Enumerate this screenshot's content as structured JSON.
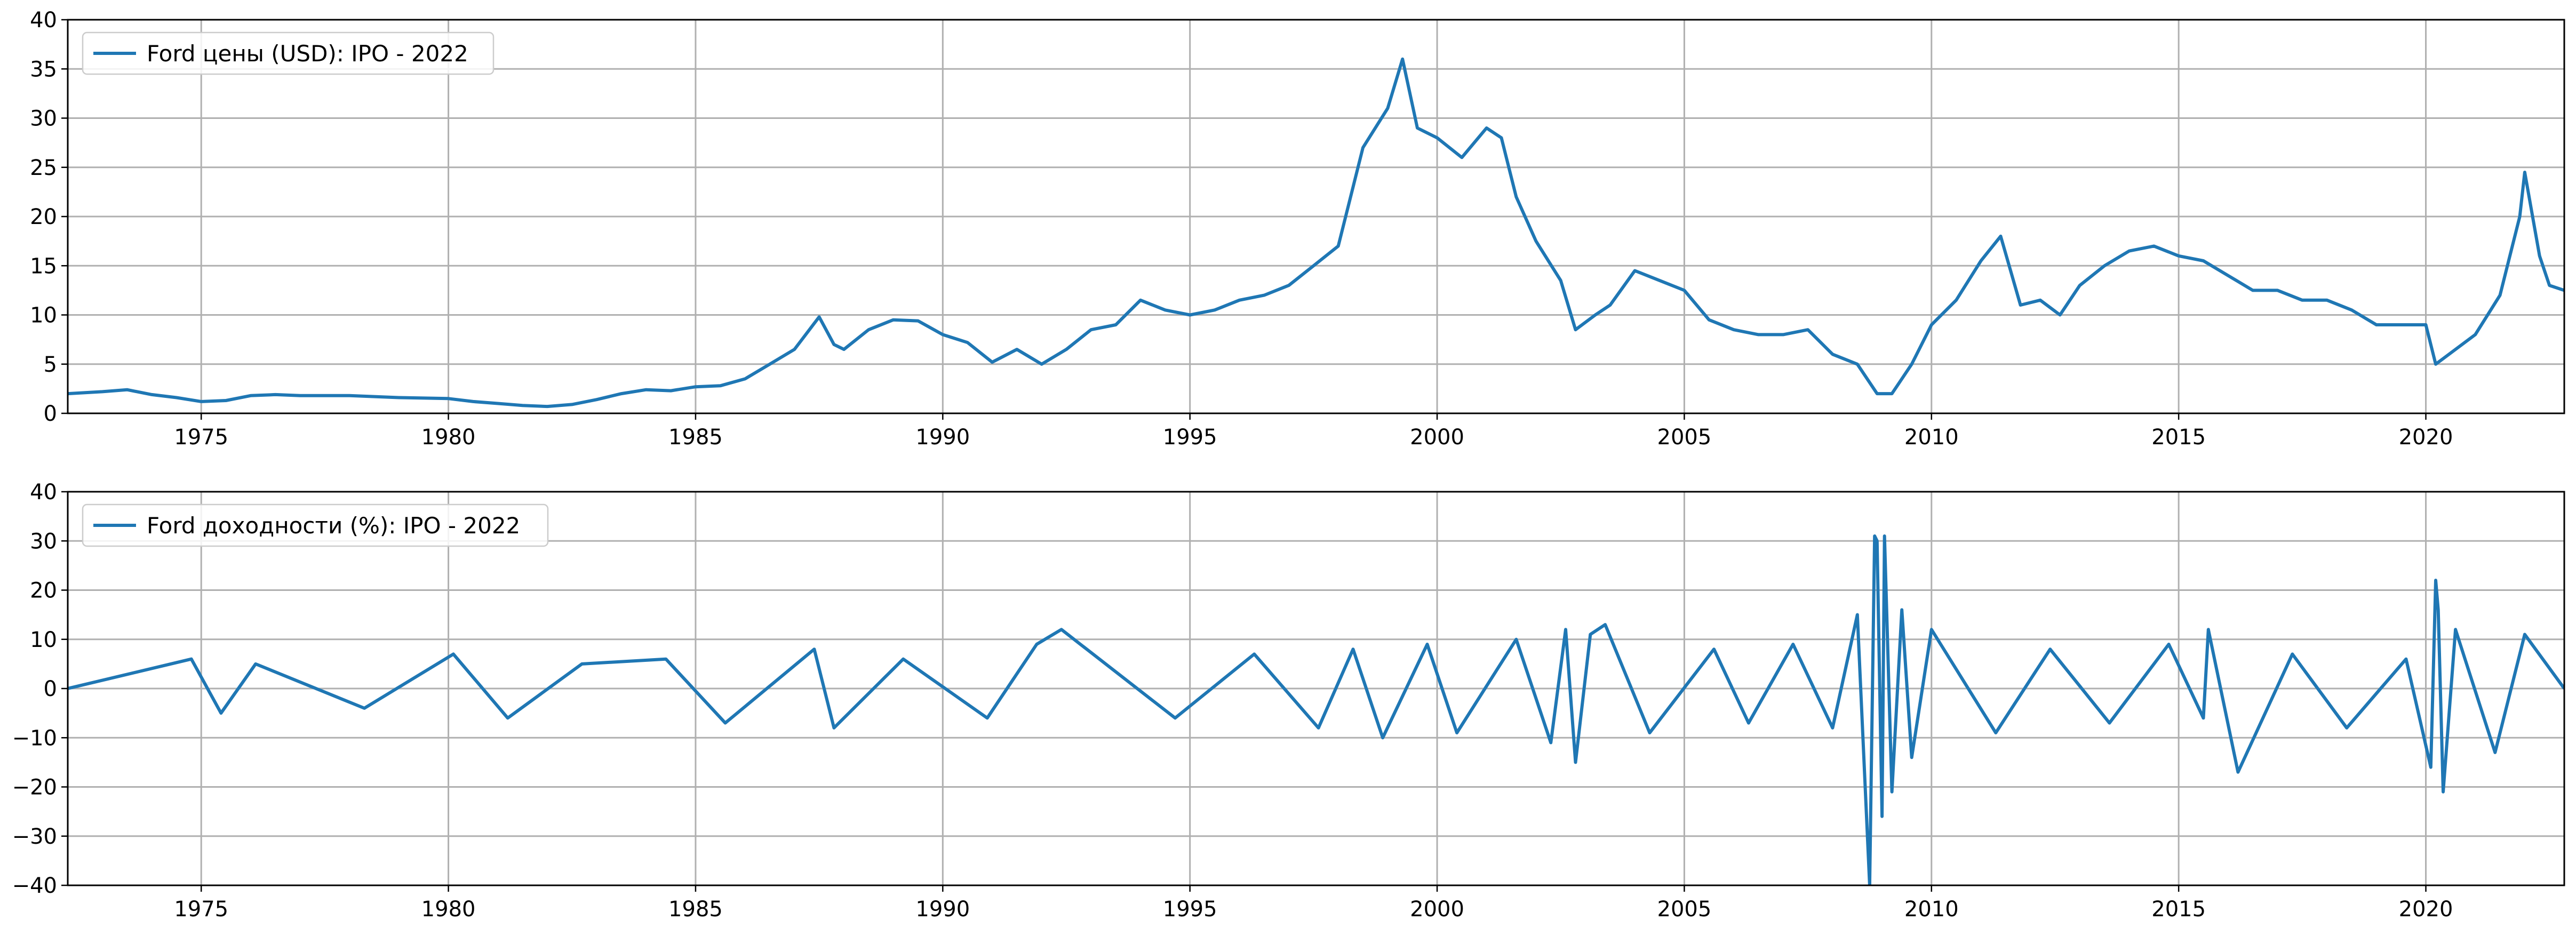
{
  "figure": {
    "line_color": "#1f77b4",
    "grid_color": "#b0b0b0"
  },
  "chart_data": [
    {
      "type": "line",
      "title": "",
      "xlabel": "",
      "ylabel": "",
      "xlim": [
        1972.3,
        2022.8
      ],
      "ylim": [
        0,
        40
      ],
      "xticks": [
        "1975",
        "1980",
        "1985",
        "1990",
        "1995",
        "2000",
        "2005",
        "2010",
        "2015",
        "2020"
      ],
      "yticks": [
        "0",
        "5",
        "10",
        "15",
        "20",
        "25",
        "30",
        "35",
        "40"
      ],
      "grid": true,
      "legend_position": "upper-left",
      "series": [
        {
          "name": "Ford цены (USD): IPO - 2022",
          "x": [
            1972.3,
            1973.0,
            1973.5,
            1974.0,
            1974.5,
            1975.0,
            1975.5,
            1976.0,
            1976.5,
            1977.0,
            1978.0,
            1979.0,
            1980.0,
            1980.5,
            1981.0,
            1981.5,
            1982.0,
            1982.5,
            1983.0,
            1983.5,
            1984.0,
            1984.5,
            1985.0,
            1985.5,
            1986.0,
            1986.5,
            1987.0,
            1987.5,
            1987.8,
            1988.0,
            1988.5,
            1989.0,
            1989.5,
            1990.0,
            1990.5,
            1991.0,
            1991.5,
            1992.0,
            1992.5,
            1993.0,
            1993.5,
            1994.0,
            1994.5,
            1995.0,
            1995.5,
            1996.0,
            1996.5,
            1997.0,
            1997.5,
            1998.0,
            1998.5,
            1999.0,
            1999.3,
            1999.6,
            2000.0,
            2000.5,
            2001.0,
            2001.3,
            2001.6,
            2002.0,
            2002.5,
            2002.8,
            2003.2,
            2003.5,
            2004.0,
            2004.5,
            2005.0,
            2005.5,
            2006.0,
            2006.5,
            2007.0,
            2007.5,
            2008.0,
            2008.5,
            2008.9,
            2009.2,
            2009.6,
            2010.0,
            2010.5,
            2011.0,
            2011.4,
            2011.8,
            2012.2,
            2012.6,
            2013.0,
            2013.5,
            2014.0,
            2014.5,
            2015.0,
            2015.5,
            2016.0,
            2016.5,
            2017.0,
            2017.5,
            2018.0,
            2018.5,
            2019.0,
            2019.5,
            2020.0,
            2020.2,
            2020.6,
            2021.0,
            2021.5,
            2021.9,
            2022.0,
            2022.3,
            2022.5,
            2022.8
          ],
          "values": [
            2.0,
            2.2,
            2.4,
            1.9,
            1.6,
            1.2,
            1.3,
            1.8,
            1.9,
            1.8,
            1.8,
            1.6,
            1.5,
            1.2,
            1.0,
            0.8,
            0.7,
            0.9,
            1.4,
            2.0,
            2.4,
            2.3,
            2.7,
            2.8,
            3.5,
            5.0,
            6.5,
            9.8,
            7.0,
            6.5,
            8.5,
            9.5,
            9.4,
            8.0,
            7.2,
            5.2,
            6.5,
            5.0,
            6.5,
            8.5,
            9.0,
            11.5,
            10.5,
            10.0,
            10.5,
            11.5,
            12.0,
            13.0,
            15.0,
            17.0,
            27.0,
            31.0,
            36.0,
            29.0,
            28.0,
            26.0,
            29.0,
            28.0,
            22.0,
            17.5,
            13.5,
            8.5,
            10.0,
            11.0,
            14.5,
            13.5,
            12.5,
            9.5,
            8.5,
            8.0,
            8.0,
            8.5,
            6.0,
            5.0,
            2.0,
            2.0,
            5.0,
            9.0,
            11.5,
            15.5,
            18.0,
            11.0,
            11.5,
            10.0,
            13.0,
            15.0,
            16.5,
            17.0,
            16.0,
            15.5,
            14.0,
            12.5,
            12.5,
            11.5,
            11.5,
            10.5,
            9.0,
            9.0,
            9.0,
            5.0,
            6.5,
            8.0,
            12.0,
            20.0,
            24.5,
            16.0,
            13.0,
            12.5
          ]
        }
      ]
    },
    {
      "type": "line",
      "title": "",
      "xlabel": "",
      "ylabel": "",
      "xlim": [
        1972.3,
        2022.8
      ],
      "ylim": [
        -40,
        40
      ],
      "xticks": [
        "1975",
        "1980",
        "1985",
        "1990",
        "1995",
        "2000",
        "2005",
        "2010",
        "2015",
        "2020"
      ],
      "yticks": [
        "−40",
        "−30",
        "−20",
        "−10",
        "0",
        "10",
        "20",
        "30",
        "40"
      ],
      "grid": true,
      "legend_position": "upper-left",
      "series": [
        {
          "name": "Ford доходности (%): IPO - 2022",
          "x": [
            1972.3,
            1974.8,
            1975.4,
            1976.1,
            1978.3,
            1980.1,
            1981.2,
            1982.7,
            1984.4,
            1985.6,
            1987.4,
            1987.8,
            1989.2,
            1990.9,
            1991.9,
            1992.4,
            1994.7,
            1996.3,
            1997.6,
            1998.3,
            1998.9,
            1999.8,
            2000.4,
            2001.6,
            2002.3,
            2002.6,
            2002.8,
            2003.1,
            2003.4,
            2004.3,
            2005.6,
            2006.3,
            2007.2,
            2008.0,
            2008.5,
            2008.75,
            2008.85,
            2008.9,
            2009.0,
            2009.05,
            2009.2,
            2009.4,
            2009.6,
            2010.0,
            2011.3,
            2012.4,
            2013.6,
            2014.8,
            2015.5,
            2015.6,
            2016.2,
            2017.3,
            2018.4,
            2019.6,
            2020.1,
            2020.2,
            2020.25,
            2020.35,
            2020.6,
            2021.4,
            2022.0,
            2022.8
          ],
          "values": [
            0,
            6,
            -5,
            5,
            -4,
            7,
            -6,
            5,
            6,
            -7,
            8,
            -8,
            6,
            -6,
            9,
            12,
            -6,
            7,
            -8,
            8,
            -10,
            9,
            -9,
            10,
            -11,
            12,
            -15,
            11,
            13,
            -9,
            8,
            -7,
            9,
            -8,
            15,
            -40,
            31,
            30,
            -26,
            31,
            -21,
            16,
            -14,
            12,
            -9,
            8,
            -7,
            9,
            -6,
            12,
            -17,
            7,
            -8,
            6,
            -16,
            22,
            16,
            -21,
            12,
            -13,
            11,
            0
          ]
        }
      ]
    }
  ]
}
